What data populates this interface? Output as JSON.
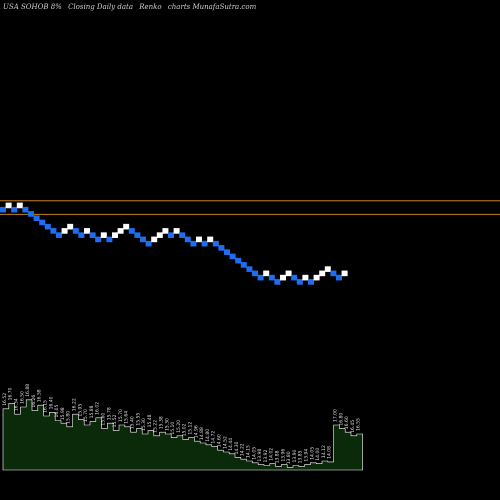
{
  "header": {
    "symbol": "USA SOHOB 8%",
    "subtitle": "Closing Daily data",
    "chart_kind": "Renko",
    "site": "charts MunafaSutra.com"
  },
  "colors": {
    "up_brick": "#ffffff",
    "down_brick": "#1e6ff0",
    "level_line": "#c8801e",
    "volume_fill": "#0a2a0a",
    "volume_stroke": "#ffffff"
  },
  "chart_data": {
    "type": "renko",
    "levels": [
      18.2,
      17.62
    ],
    "bricks": [
      {
        "dir": "down",
        "level": 17.82
      },
      {
        "dir": "up",
        "level": 18.0
      },
      {
        "dir": "down",
        "level": 17.82
      },
      {
        "dir": "up",
        "level": 18.0
      },
      {
        "dir": "down",
        "level": 17.82
      },
      {
        "dir": "down",
        "level": 17.64
      },
      {
        "dir": "down",
        "level": 17.46
      },
      {
        "dir": "down",
        "level": 17.28
      },
      {
        "dir": "down",
        "level": 17.1
      },
      {
        "dir": "down",
        "level": 16.92
      },
      {
        "dir": "down",
        "level": 16.74
      },
      {
        "dir": "up",
        "level": 16.92
      },
      {
        "dir": "up",
        "level": 17.1
      },
      {
        "dir": "down",
        "level": 16.92
      },
      {
        "dir": "down",
        "level": 16.74
      },
      {
        "dir": "up",
        "level": 16.92
      },
      {
        "dir": "down",
        "level": 16.74
      },
      {
        "dir": "down",
        "level": 16.56
      },
      {
        "dir": "up",
        "level": 16.74
      },
      {
        "dir": "down",
        "level": 16.56
      },
      {
        "dir": "up",
        "level": 16.74
      },
      {
        "dir": "up",
        "level": 16.92
      },
      {
        "dir": "up",
        "level": 17.1
      },
      {
        "dir": "down",
        "level": 16.92
      },
      {
        "dir": "down",
        "level": 16.74
      },
      {
        "dir": "down",
        "level": 16.56
      },
      {
        "dir": "down",
        "level": 16.38
      },
      {
        "dir": "up",
        "level": 16.56
      },
      {
        "dir": "up",
        "level": 16.74
      },
      {
        "dir": "up",
        "level": 16.92
      },
      {
        "dir": "down",
        "level": 16.74
      },
      {
        "dir": "up",
        "level": 16.92
      },
      {
        "dir": "down",
        "level": 16.74
      },
      {
        "dir": "down",
        "level": 16.56
      },
      {
        "dir": "down",
        "level": 16.38
      },
      {
        "dir": "up",
        "level": 16.56
      },
      {
        "dir": "down",
        "level": 16.38
      },
      {
        "dir": "up",
        "level": 16.56
      },
      {
        "dir": "down",
        "level": 16.38
      },
      {
        "dir": "down",
        "level": 16.2
      },
      {
        "dir": "down",
        "level": 16.02
      },
      {
        "dir": "down",
        "level": 15.84
      },
      {
        "dir": "down",
        "level": 15.66
      },
      {
        "dir": "down",
        "level": 15.48
      },
      {
        "dir": "down",
        "level": 15.3
      },
      {
        "dir": "down",
        "level": 15.12
      },
      {
        "dir": "down",
        "level": 14.94
      },
      {
        "dir": "up",
        "level": 15.12
      },
      {
        "dir": "down",
        "level": 14.94
      },
      {
        "dir": "down",
        "level": 14.76
      },
      {
        "dir": "up",
        "level": 14.94
      },
      {
        "dir": "up",
        "level": 15.12
      },
      {
        "dir": "down",
        "level": 14.94
      },
      {
        "dir": "down",
        "level": 14.76
      },
      {
        "dir": "up",
        "level": 14.94
      },
      {
        "dir": "down",
        "level": 14.76
      },
      {
        "dir": "up",
        "level": 14.94
      },
      {
        "dir": "up",
        "level": 15.12
      },
      {
        "dir": "up",
        "level": 15.3
      },
      {
        "dir": "down",
        "level": 15.12
      },
      {
        "dir": "down",
        "level": 14.94
      },
      {
        "dir": "up",
        "level": 15.12
      }
    ],
    "volume": {
      "values": [
        0.68,
        0.74,
        0.62,
        0.7,
        0.78,
        0.66,
        0.72,
        0.6,
        0.64,
        0.55,
        0.52,
        0.48,
        0.62,
        0.56,
        0.5,
        0.54,
        0.58,
        0.46,
        0.52,
        0.44,
        0.5,
        0.48,
        0.42,
        0.46,
        0.4,
        0.44,
        0.38,
        0.42,
        0.4,
        0.36,
        0.38,
        0.34,
        0.36,
        0.32,
        0.3,
        0.28,
        0.26,
        0.22,
        0.2,
        0.18,
        0.14,
        0.12,
        0.1,
        0.08,
        0.06,
        0.05,
        0.07,
        0.04,
        0.06,
        0.03,
        0.05,
        0.04,
        0.06,
        0.08,
        0.07,
        0.1,
        0.09,
        0.5,
        0.46,
        0.42,
        0.38,
        0.4
      ],
      "labels": [
        "16.52",
        "16.70",
        "16.34",
        "16.50",
        "16.88",
        "16.26",
        "16.58",
        "16.15",
        "16.40",
        "16.05",
        "15.98",
        "15.80",
        "16.22",
        "15.95",
        "15.70",
        "15.88",
        "16.02",
        "15.60",
        "15.78",
        "15.52",
        "15.70",
        "15.64",
        "15.40",
        "15.55",
        "15.30",
        "15.48",
        "15.22",
        "15.38",
        "15.30",
        "15.10",
        "15.20",
        "15.02",
        "15.12",
        "14.96",
        "14.88",
        "14.80",
        "14.72",
        "14.60",
        "14.52",
        "14.44",
        "14.30",
        "14.22",
        "14.15",
        "14.05",
        "13.98",
        "13.92",
        "14.02",
        "13.88",
        "13.96",
        "13.80",
        "13.90",
        "13.85",
        "13.94",
        "14.05",
        "14.00",
        "14.12",
        "14.08",
        "17.00",
        "16.80",
        "16.60",
        "16.45",
        "16.55"
      ]
    }
  }
}
